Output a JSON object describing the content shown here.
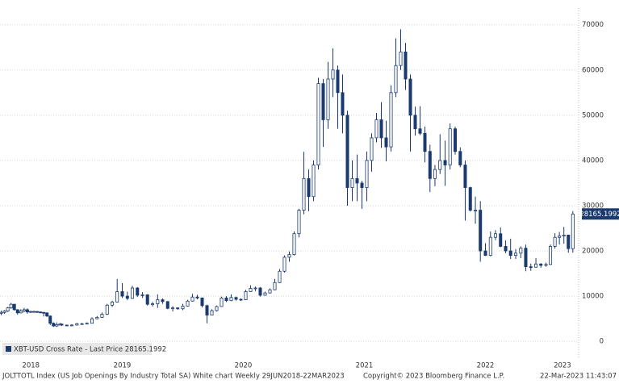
{
  "chart_data": {
    "type": "candlestick",
    "color": "#1b3b6f",
    "legend_label": "XBT-USD Cross Rate - Last Price 28165.1992",
    "last_price": 28165.1992,
    "footer_left": "JOLTTOTL Index (US Job Openings By Industry Total SA) White chart  Weekly 29JUN2018-22MAR2023",
    "copyright": "Copyright© 2023 Bloomberg Finance L.P.",
    "timestamp": "22-Mar-2023 11:43:07",
    "grid": true,
    "xlim": [
      2018.49,
      2023.27
    ],
    "xticks": [
      {
        "value": 2018.745,
        "label": "2018"
      },
      {
        "value": 2019.5,
        "label": "2019"
      },
      {
        "value": 2020.5,
        "label": "2020"
      },
      {
        "value": 2021.5,
        "label": "2021"
      },
      {
        "value": 2022.5,
        "label": "2022"
      },
      {
        "value": 2023.136,
        "label": "2023"
      }
    ],
    "ylim": [
      -3900,
      73700
    ],
    "yticks": [
      0,
      10000,
      20000,
      30000,
      40000,
      50000,
      60000,
      70000
    ],
    "x": [
      2018.5,
      2018.527,
      2018.554,
      2018.581,
      2018.608,
      2018.635,
      2018.662,
      2018.689,
      2018.716,
      2018.743,
      2018.77,
      2018.797,
      2018.824,
      2018.851,
      2018.878,
      2018.905,
      2018.932,
      2018.959,
      2018.986,
      2019.0,
      2019.042,
      2019.083,
      2019.125,
      2019.167,
      2019.208,
      2019.25,
      2019.292,
      2019.333,
      2019.375,
      2019.417,
      2019.458,
      2019.5,
      2019.542,
      2019.583,
      2019.625,
      2019.667,
      2019.708,
      2019.75,
      2019.792,
      2019.833,
      2019.875,
      2019.917,
      2019.958,
      2020.0,
      2020.04,
      2020.08,
      2020.12,
      2020.16,
      2020.2,
      2020.24,
      2020.28,
      2020.32,
      2020.36,
      2020.4,
      2020.44,
      2020.48,
      2020.52,
      2020.56,
      2020.6,
      2020.64,
      2020.68,
      2020.72,
      2020.76,
      2020.8,
      2020.84,
      2020.88,
      2020.92,
      2020.96,
      2021.0,
      2021.04,
      2021.08,
      2021.12,
      2021.16,
      2021.2,
      2021.24,
      2021.28,
      2021.32,
      2021.36,
      2021.4,
      2021.44,
      2021.48,
      2021.52,
      2021.56,
      2021.6,
      2021.64,
      2021.68,
      2021.72,
      2021.76,
      2021.8,
      2021.84,
      2021.88,
      2021.92,
      2021.96,
      2022.0,
      2022.042,
      2022.083,
      2022.125,
      2022.167,
      2022.208,
      2022.25,
      2022.292,
      2022.333,
      2022.375,
      2022.417,
      2022.458,
      2022.5,
      2022.542,
      2022.583,
      2022.625,
      2022.667,
      2022.708,
      2022.75,
      2022.792,
      2022.833,
      2022.875,
      2022.917,
      2022.958,
      2023.0,
      2023.037,
      2023.074,
      2023.111,
      2023.148,
      2023.185,
      2023.222
    ],
    "open": [
      6200,
      6400,
      6700,
      7400,
      8200,
      7000,
      6300,
      6700,
      7000,
      6500,
      6600,
      6600,
      6500,
      6400,
      6300,
      5600,
      4000,
      3400,
      3700,
      3800,
      3600,
      3500,
      3600,
      3900,
      3900,
      4000,
      5000,
      5300,
      6000,
      8000,
      8700,
      11000,
      10000,
      9500,
      11800,
      10200,
      10300,
      8200,
      8300,
      9200,
      8800,
      7300,
      7400,
      7200,
      7800,
      8900,
      9800,
      9600,
      7900,
      5800,
      6800,
      7700,
      9600,
      9000,
      9700,
      9300,
      9200,
      11000,
      11700,
      11800,
      10200,
      10700,
      11400,
      13000,
      15500,
      18600,
      19200,
      23800,
      29000,
      36000,
      32000,
      39000,
      57000,
      49000,
      58000,
      60000,
      55000,
      50000,
      34000,
      36000,
      35000,
      34000,
      40000,
      45000,
      49000,
      45000,
      43000,
      55000,
      61000,
      64000,
      58000,
      50000,
      47000,
      46000,
      42000,
      36000,
      38000,
      40000,
      39000,
      47000,
      42000,
      39000,
      34000,
      29000,
      29000,
      20000,
      19000,
      23000,
      23800,
      21000,
      20000,
      19000,
      19500,
      20600,
      16500,
      16400,
      17100,
      16800,
      17000,
      21000,
      23000,
      23300,
      23500,
      20500
    ],
    "high": [
      6800,
      6900,
      7600,
      8500,
      8300,
      7100,
      7100,
      7400,
      7300,
      6800,
      6800,
      6700,
      6600,
      6500,
      6400,
      5700,
      4200,
      4200,
      4100,
      4000,
      3700,
      3800,
      4100,
      4100,
      4200,
      5300,
      5600,
      6400,
      8300,
      9000,
      13800,
      12900,
      11000,
      12300,
      12000,
      10900,
      10400,
      8700,
      10400,
      9500,
      8900,
      7800,
      7500,
      8300,
      9200,
      10500,
      10300,
      9700,
      8100,
      7100,
      7900,
      9900,
      10000,
      10400,
      9900,
      9500,
      11400,
      12400,
      12100,
      12000,
      11000,
      11700,
      13800,
      16000,
      19000,
      19900,
      24300,
      29300,
      41900,
      38000,
      40000,
      58300,
      58000,
      61800,
      64800,
      61000,
      59000,
      51000,
      40000,
      41300,
      35500,
      42000,
      46000,
      50500,
      52900,
      48800,
      56600,
      67000,
      69000,
      66000,
      59000,
      51900,
      52000,
      47500,
      43500,
      39000,
      45800,
      44400,
      48200,
      47500,
      42900,
      40000,
      34200,
      32000,
      31000,
      21700,
      24300,
      24600,
      25200,
      22300,
      22700,
      20400,
      21000,
      21400,
      17200,
      18400,
      17300,
      17400,
      21400,
      23900,
      24200,
      25300,
      23600,
      28800
    ],
    "low": [
      5800,
      6100,
      6500,
      7200,
      6800,
      5900,
      6200,
      6400,
      6100,
      6300,
      6400,
      6300,
      6200,
      5500,
      5400,
      3600,
      3200,
      3200,
      3600,
      3400,
      3400,
      3400,
      3500,
      3700,
      3800,
      4000,
      4900,
      5200,
      5800,
      7600,
      8600,
      9600,
      9100,
      9400,
      9800,
      9600,
      7900,
      7700,
      7400,
      8300,
      7100,
      6600,
      7000,
      6900,
      7700,
      8800,
      9300,
      7500,
      4000,
      5900,
      6600,
      7600,
      8700,
      8900,
      9000,
      8900,
      9100,
      10900,
      11100,
      9900,
      10100,
      10600,
      11300,
      12900,
      15200,
      17600,
      19000,
      23000,
      28100,
      28800,
      31000,
      38000,
      43000,
      47000,
      54000,
      47000,
      46000,
      30000,
      31000,
      31000,
      29300,
      31000,
      37500,
      44000,
      42800,
      39800,
      42000,
      54000,
      60000,
      55600,
      42000,
      45500,
      45600,
      39600,
      33000,
      34300,
      37000,
      34400,
      38000,
      41300,
      38500,
      26700,
      28700,
      26000,
      17600,
      18900,
      18800,
      22400,
      20800,
      19500,
      18200,
      18200,
      18400,
      15500,
      15600,
      16300,
      16300,
      16500,
      16900,
      20500,
      21400,
      21600,
      19600,
      19600
    ],
    "close": [
      6400,
      6700,
      7400,
      8200,
      7000,
      6300,
      6700,
      7000,
      6500,
      6600,
      6600,
      6500,
      6400,
      6300,
      5600,
      4000,
      3400,
      3700,
      3800,
      3600,
      3500,
      3600,
      3900,
      3900,
      4000,
      5000,
      5300,
      6000,
      8000,
      8700,
      11000,
      10000,
      9500,
      11800,
      10200,
      10300,
      8200,
      8300,
      9200,
      8800,
      7300,
      7400,
      7200,
      7800,
      8900,
      9800,
      9600,
      7900,
      5800,
      6800,
      7700,
      9600,
      9000,
      9700,
      9300,
      9200,
      11000,
      11700,
      11800,
      10200,
      10700,
      11400,
      13000,
      15500,
      18600,
      19200,
      23800,
      29000,
      36000,
      32000,
      39000,
      57000,
      49000,
      58000,
      60000,
      55000,
      50000,
      34000,
      36000,
      35000,
      34000,
      40000,
      45000,
      49000,
      45000,
      43000,
      55000,
      61000,
      64000,
      58000,
      50000,
      47000,
      46000,
      42000,
      36000,
      38000,
      40000,
      39000,
      47000,
      42000,
      39000,
      34000,
      29000,
      29000,
      20000,
      19000,
      23000,
      23800,
      21000,
      20000,
      19000,
      19500,
      20600,
      16500,
      16400,
      17100,
      16800,
      17000,
      21000,
      23000,
      23300,
      23500,
      20500,
      28165.1992
    ]
  }
}
